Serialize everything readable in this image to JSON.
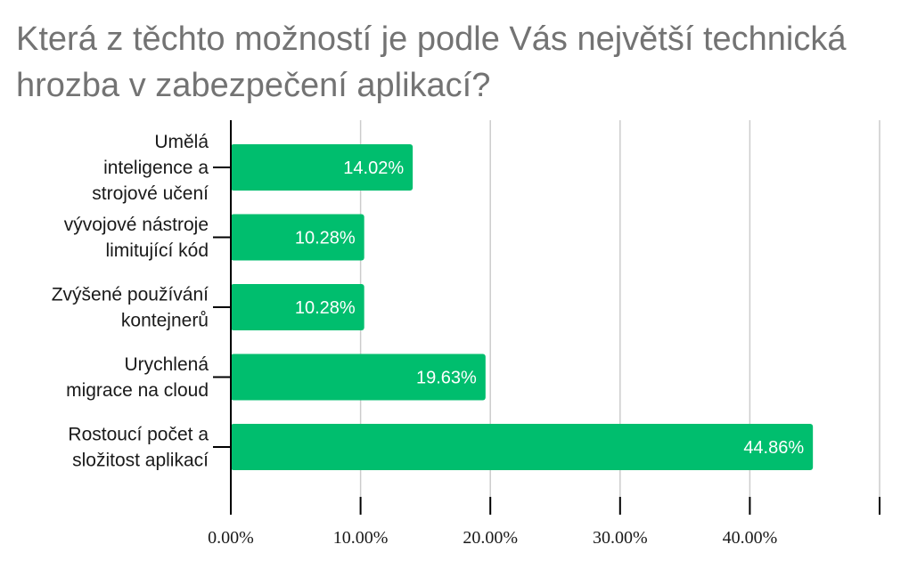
{
  "chart_data": {
    "type": "bar",
    "orientation": "horizontal",
    "title": "Která z těchto možností je podle Vás největší technická hrozba v zabezpečení aplikací?",
    "categories": [
      [
        "Umělá",
        "inteligence a",
        "strojové učení"
      ],
      [
        "vývojové nástroje",
        "limitující kód"
      ],
      [
        "Zvýšené používání",
        "kontejnerů"
      ],
      [
        "Urychlená",
        "migrace na cloud"
      ],
      [
        "Rostoucí počet a",
        "složitost aplikací"
      ]
    ],
    "values": [
      14.02,
      10.28,
      10.28,
      19.63,
      44.86
    ],
    "data_labels": [
      "14.02%",
      "10.28%",
      "10.28%",
      "19.63%",
      "44.86%"
    ],
    "x_ticks": [
      "0.00%",
      "10.00%",
      "20.00%",
      "30.00%",
      "40.00%"
    ],
    "xlim": [
      0,
      50
    ],
    "grid": true,
    "legend": false,
    "colors": {
      "bar": "#00be6e",
      "grid": "#cccccc",
      "axis": "#000000",
      "title": "#737373"
    }
  }
}
